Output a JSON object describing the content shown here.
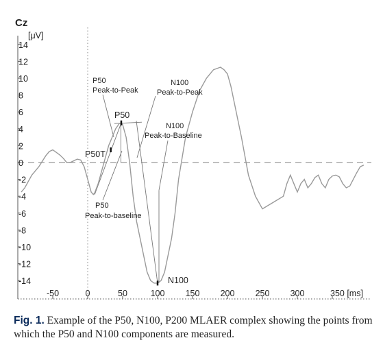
{
  "chart_data": {
    "type": "line",
    "title": "Cz",
    "ylabel_unit": "[μV]",
    "xlabel_unit": "[ms]",
    "xlim": [
      -95,
      395
    ],
    "ylim": [
      -15,
      15
    ],
    "x_ticks": [
      -50,
      0,
      50,
      100,
      150,
      200,
      250,
      300,
      350
    ],
    "x_tick_labels": [
      "-50",
      "0",
      "50",
      "100",
      "150",
      "200",
      "250",
      "300",
      "350 [ms]"
    ],
    "y_ticks": [
      14,
      12,
      10,
      8,
      6,
      4,
      2,
      0,
      -2,
      -4,
      -6,
      -8,
      -10,
      -12,
      -14
    ],
    "y_tick_labels": [
      "14",
      "12",
      "10",
      "8",
      "6",
      "4",
      "2",
      "0",
      "-2",
      "-4",
      "-6",
      "-8",
      "-10",
      "-12",
      "-14"
    ],
    "baseline_y": 0,
    "stimulus_x": 0,
    "grid": false,
    "series": [
      {
        "x": [
          -95,
          -90,
          -80,
          -70,
          -60,
          -55,
          -50,
          -45,
          -40,
          -35,
          -30,
          -25,
          -20,
          -15,
          -10,
          -5,
          0,
          5,
          8,
          10,
          15,
          20,
          25,
          30,
          35,
          40,
          45,
          48,
          50,
          55,
          60,
          65,
          70,
          75,
          80,
          85,
          90,
          95,
          100,
          105,
          110,
          115,
          120,
          125,
          130,
          140,
          150,
          160,
          170,
          180,
          190,
          195,
          200,
          205,
          210,
          220,
          230,
          240,
          250,
          260,
          270,
          280,
          285,
          290,
          295,
          300,
          305,
          310,
          315,
          320,
          325,
          330,
          335,
          340,
          345,
          350,
          355,
          360,
          365,
          370,
          375,
          380,
          385,
          390,
          395
        ],
        "y": [
          -3.5,
          -3,
          -1.5,
          -0.5,
          0.8,
          1.3,
          1.5,
          1.2,
          0.9,
          0.5,
          0,
          0,
          0.2,
          0.4,
          0.3,
          -0.5,
          -2,
          -3.5,
          -3.8,
          -3.6,
          -2.5,
          -1,
          0.5,
          2,
          3,
          4,
          4.6,
          4.7,
          4.5,
          3,
          0,
          -4,
          -7,
          -9,
          -11,
          -13,
          -14,
          -14.3,
          -14.3,
          -14,
          -13,
          -11,
          -9,
          -6,
          -2,
          3,
          6,
          8.5,
          10,
          11,
          11.3,
          11,
          10.5,
          9,
          7,
          3,
          -1.5,
          -4,
          -5.5,
          -5,
          -4.5,
          -4,
          -2.5,
          -1.5,
          -2.5,
          -3.5,
          -2.5,
          -2,
          -3,
          -2.5,
          -1.8,
          -1.5,
          -2.5,
          -3,
          -2,
          -1.6,
          -1.5,
          -1.7,
          -2.5,
          -3,
          -2.8,
          -2,
          -1.2,
          -0.5,
          -0.3
        ]
      }
    ],
    "annotations": [
      {
        "id": "p50",
        "text": "P50",
        "x": 48,
        "y": 4.7
      },
      {
        "id": "p50t",
        "text": "P50T",
        "x": 33,
        "y": 1.5
      },
      {
        "id": "n100",
        "text": "N100",
        "x": 100,
        "y": -14.3
      },
      {
        "id": "p50_ptp",
        "lines": [
          "P50",
          "Peak-to-Peak"
        ]
      },
      {
        "id": "n100_ptp",
        "lines": [
          "N100",
          "Peak-to-Peak"
        ]
      },
      {
        "id": "n100_ptb",
        "lines": [
          "N100",
          "Peak-to-Baseline"
        ]
      },
      {
        "id": "p50_ptb",
        "lines": [
          "P50",
          "Peak-to-baseline"
        ]
      }
    ]
  },
  "caption": {
    "label": "Fig. 1.",
    "text": " Example of the P50, N100, P200 MLAER complex showing the points from which the P50 and N100 components are measured."
  }
}
